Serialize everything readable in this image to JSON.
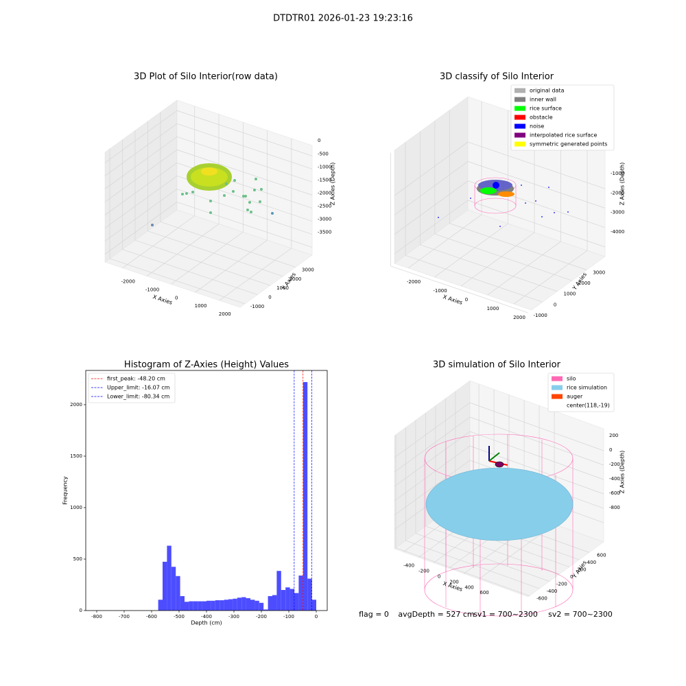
{
  "suptitle": "DTDTR01 2026-01-23 19:23:16",
  "chart_data": [
    {
      "type": "scatter3d",
      "title": "3D Plot of Silo Interior(row data)",
      "xlabel": "X Axies",
      "ylabel": "Y Axies",
      "zlabel": "Z Axies (Depth)",
      "xlim": [
        -2730,
        2855
      ],
      "ylim": [
        -1380,
        4300
      ],
      "zlim": [
        -3800,
        400
      ],
      "xticks": [
        -2000,
        -1000,
        0,
        1000,
        2000
      ],
      "yticks": [
        -1000,
        0,
        1000,
        2000,
        3000
      ],
      "zticks": [
        0,
        -500,
        -1000,
        -1500,
        -2000,
        -2500,
        -3000,
        -3500
      ]
    },
    {
      "type": "scatter3d",
      "title": "3D classify of Silo Interior",
      "xlabel": "X Axies",
      "ylabel": "Y Axies",
      "zlabel": "Z Axies (Depth)",
      "xlim": [
        -2520,
        2675
      ],
      "ylim": [
        -750,
        4250
      ],
      "zlim": [
        -4495,
        1335
      ],
      "xticks": [
        -2000,
        -1000,
        0,
        1000,
        2000
      ],
      "yticks": [
        -1000,
        0,
        1000,
        2000,
        3000
      ],
      "zticks": [
        -1000,
        -2000,
        -3000,
        -4000
      ],
      "series": [
        {
          "name": "original data",
          "color": "#b0b0b0"
        },
        {
          "name": "inner wall",
          "color": "#808080"
        },
        {
          "name": "rice surface",
          "color": "#00ff00"
        },
        {
          "name": "obstacle",
          "color": "#ff0000"
        },
        {
          "name": "noise",
          "color": "#0000ff"
        },
        {
          "name": "interpolated rice surface",
          "color": "#800080"
        },
        {
          "name": "symmetric generated points",
          "color": "#ffff00"
        }
      ]
    },
    {
      "type": "histogram",
      "title": "Histogram of Z-Axies (Height) Values",
      "xlabel": "Depth (cm)",
      "ylabel": "Frequency",
      "color": "#4d4dff",
      "xlim": [
        -840,
        40
      ],
      "ylim": [
        0,
        2333
      ],
      "xticks": [
        -800,
        -700,
        -600,
        -500,
        -400,
        -300,
        -200,
        -100,
        0
      ],
      "yticks": [
        0,
        500,
        1000,
        1500,
        2000
      ],
      "bins": [
        -576,
        -560,
        -544,
        -528,
        -512,
        -496,
        -480,
        -464,
        -448,
        -432,
        -416,
        -400,
        -384,
        -368,
        -352,
        -336,
        -320,
        -304,
        -288,
        -272,
        -256,
        -240,
        -224,
        -208,
        -192,
        -176,
        -160,
        -144,
        -128,
        -112,
        -96,
        -80,
        -64,
        -48,
        -32,
        -16,
        0
      ],
      "counts": [
        105,
        474,
        630,
        425,
        335,
        140,
        85,
        90,
        90,
        90,
        90,
        95,
        95,
        100,
        100,
        105,
        110,
        115,
        125,
        130,
        120,
        105,
        95,
        75,
        10,
        140,
        150,
        385,
        200,
        225,
        210,
        170,
        340,
        2220,
        310,
        105
      ],
      "lines": [
        {
          "name": "first_peak: -48.20 cm",
          "value": -48.2,
          "color": "#ff0000"
        },
        {
          "name": "Upper_limit: -16.07 cm",
          "value": -16.07,
          "color": "#0000ff"
        },
        {
          "name": "Lower_limit: -80.34 cm",
          "value": -80.34,
          "color": "#0000ff"
        }
      ]
    },
    {
      "type": "scatter3d",
      "title": "3D simulation of Silo Interior",
      "xlabel": "X Axies",
      "ylabel": "Y Axies",
      "zlabel": "Z Axies (Depth)",
      "xlim": [
        -519,
        1254
      ],
      "ylim": [
        -627,
        892
      ],
      "zlim": [
        -1067,
        505
      ],
      "xticks": [
        -400,
        -200,
        0,
        200,
        400,
        600
      ],
      "yticks": [
        -600,
        -400,
        -200,
        0,
        200,
        400,
        600
      ],
      "zticks": [
        200,
        0,
        -200,
        -400,
        -600,
        -800
      ],
      "series": [
        {
          "name": "silo",
          "color": "#ff69b4"
        },
        {
          "name": "rice simulation",
          "color": "#87ceeb"
        },
        {
          "name": "auger",
          "color": "#ff4500"
        },
        {
          "name": "center(118,-19)",
          "color": "#ffffff"
        }
      ]
    }
  ],
  "footer": [
    "flag = 0",
    "avgDepth = 527 cm",
    "sv1 = 700~2300",
    "sv2 = 700~2300"
  ]
}
